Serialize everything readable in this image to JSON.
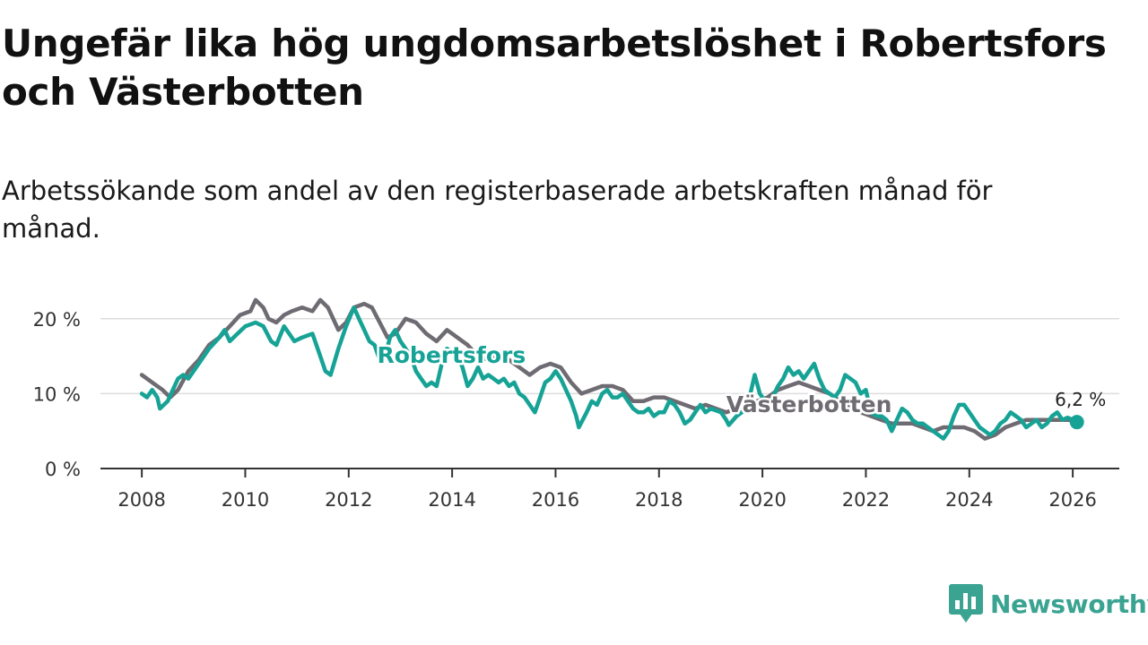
{
  "header": {
    "title": "Ungefär lika hög ungdomsarbetslöshet i Robertsfors och Västerbotten",
    "subtitle": "Arbetssökande som andel av den registerbaserade arbetskraften månad för månad."
  },
  "brand": {
    "name": "Newsworthy",
    "icon": "newsworthy-logo-icon",
    "color": "#3aa391"
  },
  "colors": {
    "robertsfors": "#16a396",
    "vasterbotten": "#6f6b72",
    "gridline": "#dddddd",
    "axis": "#333333"
  },
  "chart_data": {
    "type": "line",
    "title": "Ungefär lika hög ungdomsarbetslöshet i Robertsfors och Västerbotten",
    "subtitle": "Arbetssökande som andel av den registerbaserade arbetskraften månad för månad.",
    "xlabel": "",
    "ylabel": "",
    "xlim": [
      2007.2,
      2026.9
    ],
    "ylim": [
      0,
      25
    ],
    "x_ticks": [
      2008,
      2010,
      2012,
      2014,
      2016,
      2018,
      2020,
      2022,
      2024,
      2026
    ],
    "x_tick_labels": [
      "2008",
      "2010",
      "2012",
      "2014",
      "2016",
      "2018",
      "2020",
      "2022",
      "2024",
      "2026"
    ],
    "y_ticks": [
      0,
      10,
      20
    ],
    "y_tick_labels": [
      "0 %",
      "10 %",
      "20 %"
    ],
    "grid": true,
    "legend": "inline labels",
    "series": [
      {
        "name": "Västerbotten",
        "label": "Västerbotten",
        "color": "#6f6b72",
        "points": [
          [
            2008.0,
            12.5
          ],
          [
            2008.2,
            11.5
          ],
          [
            2008.4,
            10.5
          ],
          [
            2008.55,
            9.5
          ],
          [
            2008.7,
            10.5
          ],
          [
            2008.9,
            13.0
          ],
          [
            2009.1,
            14.5
          ],
          [
            2009.3,
            16.5
          ],
          [
            2009.5,
            17.5
          ],
          [
            2009.7,
            19.0
          ],
          [
            2009.9,
            20.5
          ],
          [
            2010.1,
            21.0
          ],
          [
            2010.2,
            22.5
          ],
          [
            2010.35,
            21.5
          ],
          [
            2010.45,
            20.0
          ],
          [
            2010.6,
            19.5
          ],
          [
            2010.75,
            20.5
          ],
          [
            2010.9,
            21.0
          ],
          [
            2011.1,
            21.5
          ],
          [
            2011.3,
            21.0
          ],
          [
            2011.45,
            22.5
          ],
          [
            2011.6,
            21.5
          ],
          [
            2011.8,
            18.5
          ],
          [
            2011.95,
            19.5
          ],
          [
            2012.1,
            21.5
          ],
          [
            2012.3,
            22.0
          ],
          [
            2012.45,
            21.5
          ],
          [
            2012.6,
            19.5
          ],
          [
            2012.75,
            17.5
          ],
          [
            2012.9,
            18.0
          ],
          [
            2013.1,
            20.0
          ],
          [
            2013.3,
            19.5
          ],
          [
            2013.5,
            18.0
          ],
          [
            2013.7,
            17.0
          ],
          [
            2013.9,
            18.5
          ],
          [
            2014.1,
            17.5
          ],
          [
            2014.3,
            16.5
          ],
          [
            2014.5,
            15.0
          ],
          [
            2014.7,
            14.5
          ],
          [
            2014.9,
            15.0
          ],
          [
            2015.1,
            14.5
          ],
          [
            2015.3,
            13.5
          ],
          [
            2015.5,
            12.5
          ],
          [
            2015.7,
            13.5
          ],
          [
            2015.9,
            14.0
          ],
          [
            2016.1,
            13.5
          ],
          [
            2016.3,
            11.5
          ],
          [
            2016.5,
            10.0
          ],
          [
            2016.7,
            10.5
          ],
          [
            2016.9,
            11.0
          ],
          [
            2017.1,
            11.0
          ],
          [
            2017.3,
            10.5
          ],
          [
            2017.5,
            9.0
          ],
          [
            2017.7,
            9.0
          ],
          [
            2017.9,
            9.5
          ],
          [
            2018.1,
            9.5
          ],
          [
            2018.3,
            9.0
          ],
          [
            2018.5,
            8.5
          ],
          [
            2018.7,
            8.0
          ],
          [
            2018.9,
            8.5
          ],
          [
            2019.1,
            8.0
          ],
          [
            2019.3,
            7.5
          ],
          [
            2019.5,
            8.0
          ],
          [
            2019.7,
            8.5
          ],
          [
            2019.9,
            9.0
          ],
          [
            2020.1,
            9.5
          ],
          [
            2020.3,
            10.5
          ],
          [
            2020.5,
            11.0
          ],
          [
            2020.7,
            11.5
          ],
          [
            2020.9,
            11.0
          ],
          [
            2021.1,
            10.5
          ],
          [
            2021.3,
            10.0
          ],
          [
            2021.5,
            9.0
          ],
          [
            2021.7,
            8.0
          ],
          [
            2021.9,
            7.5
          ],
          [
            2022.1,
            7.0
          ],
          [
            2022.3,
            6.5
          ],
          [
            2022.5,
            6.0
          ],
          [
            2022.7,
            6.0
          ],
          [
            2022.9,
            6.0
          ],
          [
            2023.1,
            5.5
          ],
          [
            2023.3,
            5.0
          ],
          [
            2023.5,
            5.5
          ],
          [
            2023.7,
            5.5
          ],
          [
            2023.9,
            5.5
          ],
          [
            2024.1,
            5.0
          ],
          [
            2024.3,
            4.0
          ],
          [
            2024.5,
            4.5
          ],
          [
            2024.7,
            5.5
          ],
          [
            2024.9,
            6.0
          ],
          [
            2025.1,
            6.5
          ],
          [
            2025.3,
            6.5
          ],
          [
            2025.5,
            6.5
          ],
          [
            2025.7,
            6.5
          ],
          [
            2025.9,
            6.5
          ],
          [
            2026.08,
            6.3
          ]
        ]
      },
      {
        "name": "Robertsfors",
        "label": "Robertsfors",
        "color": "#16a396",
        "end_label": "6,2 %",
        "end_value": 6.2,
        "points": [
          [
            2008.0,
            10.0
          ],
          [
            2008.1,
            9.5
          ],
          [
            2008.2,
            10.5
          ],
          [
            2008.3,
            9.5
          ],
          [
            2008.35,
            8.0
          ],
          [
            2008.5,
            9.0
          ],
          [
            2008.6,
            10.5
          ],
          [
            2008.7,
            12.0
          ],
          [
            2008.8,
            12.5
          ],
          [
            2008.9,
            12.0
          ],
          [
            2009.1,
            14.0
          ],
          [
            2009.3,
            16.0
          ],
          [
            2009.5,
            17.5
          ],
          [
            2009.6,
            18.5
          ],
          [
            2009.7,
            17.0
          ],
          [
            2009.85,
            18.0
          ],
          [
            2010.0,
            19.0
          ],
          [
            2010.2,
            19.5
          ],
          [
            2010.35,
            19.0
          ],
          [
            2010.5,
            17.0
          ],
          [
            2010.6,
            16.5
          ],
          [
            2010.75,
            19.0
          ],
          [
            2010.85,
            18.0
          ],
          [
            2010.95,
            17.0
          ],
          [
            2011.1,
            17.5
          ],
          [
            2011.3,
            18.0
          ],
          [
            2011.45,
            15.0
          ],
          [
            2011.55,
            13.0
          ],
          [
            2011.65,
            12.5
          ],
          [
            2011.8,
            16.0
          ],
          [
            2011.95,
            19.0
          ],
          [
            2012.1,
            21.5
          ],
          [
            2012.2,
            20.0
          ],
          [
            2012.3,
            18.5
          ],
          [
            2012.4,
            17.0
          ],
          [
            2012.5,
            16.5
          ],
          [
            2012.6,
            14.5
          ],
          [
            2012.7,
            15.0
          ],
          [
            2012.8,
            17.5
          ],
          [
            2012.9,
            18.5
          ],
          [
            2013.0,
            17.0
          ],
          [
            2013.1,
            16.0
          ],
          [
            2013.2,
            15.0
          ],
          [
            2013.3,
            13.0
          ],
          [
            2013.4,
            12.0
          ],
          [
            2013.5,
            11.0
          ],
          [
            2013.6,
            11.5
          ],
          [
            2013.7,
            11.0
          ],
          [
            2013.8,
            14.0
          ],
          [
            2013.9,
            16.0
          ],
          [
            2014.0,
            15.5
          ],
          [
            2014.1,
            15.0
          ],
          [
            2014.2,
            13.5
          ],
          [
            2014.3,
            11.0
          ],
          [
            2014.4,
            12.0
          ],
          [
            2014.5,
            13.5
          ],
          [
            2014.6,
            12.0
          ],
          [
            2014.7,
            12.5
          ],
          [
            2014.8,
            12.0
          ],
          [
            2014.9,
            11.5
          ],
          [
            2015.0,
            12.0
          ],
          [
            2015.1,
            11.0
          ],
          [
            2015.2,
            11.5
          ],
          [
            2015.3,
            10.0
          ],
          [
            2015.4,
            9.5
          ],
          [
            2015.5,
            8.5
          ],
          [
            2015.6,
            7.5
          ],
          [
            2015.7,
            9.5
          ],
          [
            2015.8,
            11.5
          ],
          [
            2015.9,
            12.0
          ],
          [
            2016.0,
            13.0
          ],
          [
            2016.1,
            12.0
          ],
          [
            2016.2,
            10.5
          ],
          [
            2016.3,
            9.0
          ],
          [
            2016.4,
            7.0
          ],
          [
            2016.45,
            5.5
          ],
          [
            2016.6,
            7.5
          ],
          [
            2016.7,
            9.0
          ],
          [
            2016.8,
            8.5
          ],
          [
            2016.9,
            10.0
          ],
          [
            2017.0,
            10.5
          ],
          [
            2017.1,
            9.5
          ],
          [
            2017.2,
            9.5
          ],
          [
            2017.3,
            10.0
          ],
          [
            2017.4,
            9.0
          ],
          [
            2017.5,
            8.0
          ],
          [
            2017.6,
            7.5
          ],
          [
            2017.7,
            7.5
          ],
          [
            2017.8,
            8.0
          ],
          [
            2017.9,
            7.0
          ],
          [
            2018.0,
            7.5
          ],
          [
            2018.1,
            7.5
          ],
          [
            2018.2,
            9.0
          ],
          [
            2018.3,
            8.5
          ],
          [
            2018.4,
            7.5
          ],
          [
            2018.5,
            6.0
          ],
          [
            2018.6,
            6.5
          ],
          [
            2018.7,
            7.5
          ],
          [
            2018.8,
            8.5
          ],
          [
            2018.9,
            7.5
          ],
          [
            2019.0,
            8.0
          ],
          [
            2019.2,
            7.5
          ],
          [
            2019.3,
            6.5
          ],
          [
            2019.35,
            5.8
          ],
          [
            2019.5,
            7.0
          ],
          [
            2019.7,
            8.0
          ],
          [
            2019.85,
            12.5
          ],
          [
            2019.95,
            10.0
          ],
          [
            2020.1,
            8.5
          ],
          [
            2020.2,
            9.5
          ],
          [
            2020.3,
            11.0
          ],
          [
            2020.4,
            12.0
          ],
          [
            2020.5,
            13.5
          ],
          [
            2020.6,
            12.5
          ],
          [
            2020.7,
            13.0
          ],
          [
            2020.8,
            12.0
          ],
          [
            2020.9,
            13.0
          ],
          [
            2021.0,
            14.0
          ],
          [
            2021.1,
            12.0
          ],
          [
            2021.2,
            10.5
          ],
          [
            2021.3,
            10.0
          ],
          [
            2021.4,
            9.5
          ],
          [
            2021.5,
            10.5
          ],
          [
            2021.6,
            12.5
          ],
          [
            2021.7,
            12.0
          ],
          [
            2021.8,
            11.5
          ],
          [
            2021.9,
            10.0
          ],
          [
            2022.0,
            10.5
          ],
          [
            2022.1,
            7.5
          ],
          [
            2022.2,
            7.0
          ],
          [
            2022.3,
            7.0
          ],
          [
            2022.4,
            6.5
          ],
          [
            2022.5,
            5.0
          ],
          [
            2022.6,
            6.5
          ],
          [
            2022.7,
            8.0
          ],
          [
            2022.8,
            7.5
          ],
          [
            2022.9,
            6.5
          ],
          [
            2023.0,
            6.0
          ],
          [
            2023.1,
            6.0
          ],
          [
            2023.2,
            5.5
          ],
          [
            2023.3,
            5.0
          ],
          [
            2023.4,
            4.5
          ],
          [
            2023.5,
            4.0
          ],
          [
            2023.6,
            5.0
          ],
          [
            2023.7,
            7.0
          ],
          [
            2023.8,
            8.5
          ],
          [
            2023.9,
            8.5
          ],
          [
            2024.0,
            7.5
          ],
          [
            2024.1,
            6.5
          ],
          [
            2024.2,
            5.5
          ],
          [
            2024.3,
            5.0
          ],
          [
            2024.4,
            4.5
          ],
          [
            2024.5,
            5.0
          ],
          [
            2024.6,
            6.0
          ],
          [
            2024.7,
            6.5
          ],
          [
            2024.8,
            7.5
          ],
          [
            2024.9,
            7.0
          ],
          [
            2025.0,
            6.5
          ],
          [
            2025.1,
            5.5
          ],
          [
            2025.2,
            6.0
          ],
          [
            2025.3,
            6.5
          ],
          [
            2025.4,
            5.5
          ],
          [
            2025.5,
            6.0
          ],
          [
            2025.6,
            7.0
          ],
          [
            2025.7,
            7.5
          ],
          [
            2025.8,
            6.5
          ],
          [
            2025.9,
            6.8
          ],
          [
            2026.0,
            6.5
          ],
          [
            2026.08,
            6.2
          ]
        ]
      }
    ]
  }
}
